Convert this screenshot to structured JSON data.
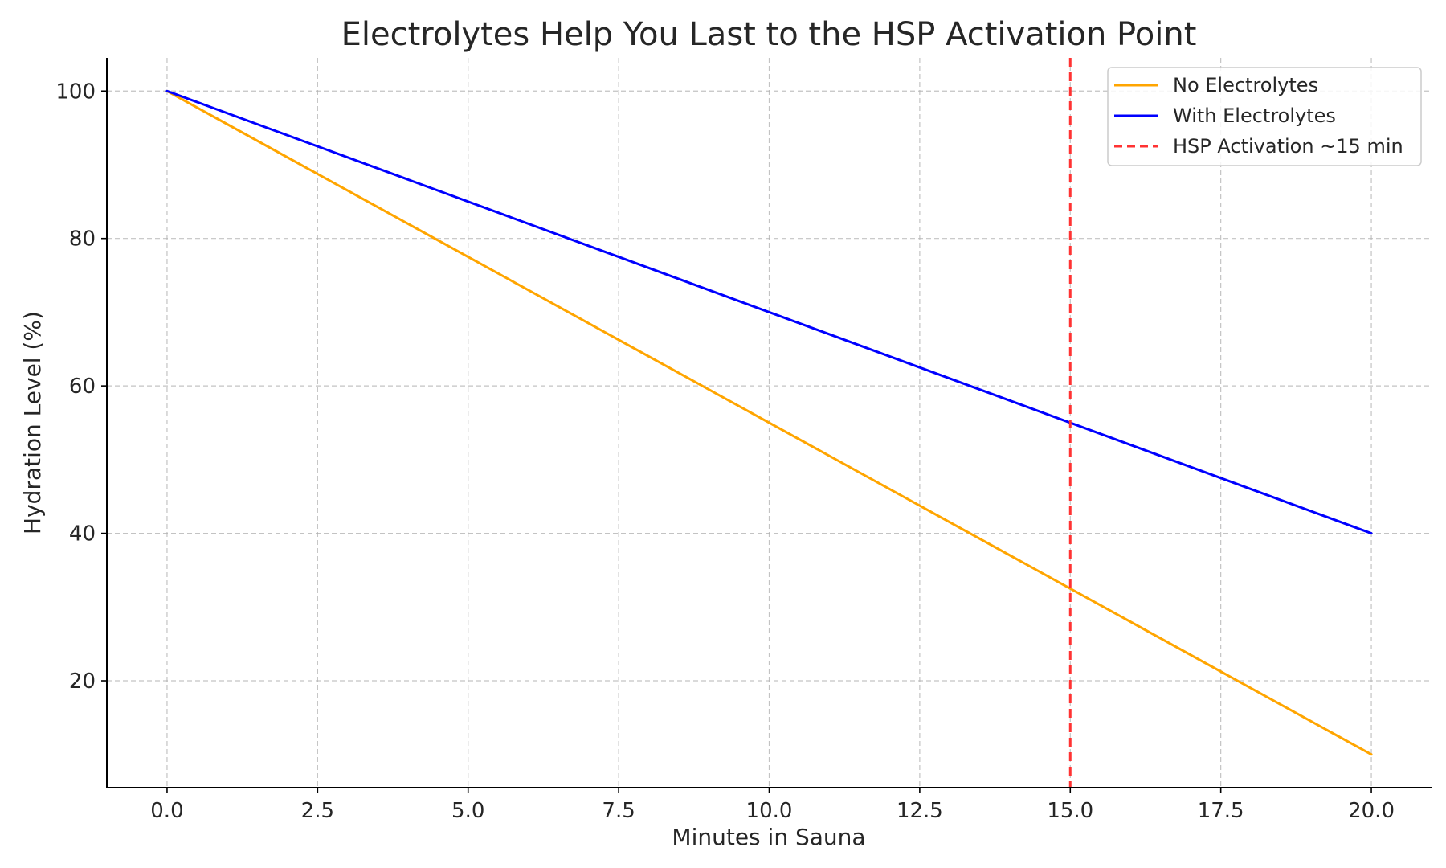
{
  "chart_data": {
    "type": "line",
    "title": "Electrolytes Help You Last to the HSP Activation Point",
    "xlabel": "Minutes in Sauna",
    "ylabel": "Hydration Level (%)",
    "xlim": [
      -1.0,
      21.0
    ],
    "ylim": [
      5.5,
      104.5
    ],
    "xticks": [
      0.0,
      2.5,
      5.0,
      7.5,
      10.0,
      12.5,
      15.0,
      17.5,
      20.0
    ],
    "xtick_labels": [
      "0.0",
      "2.5",
      "5.0",
      "7.5",
      "10.0",
      "12.5",
      "15.0",
      "17.5",
      "20.0"
    ],
    "yticks": [
      20,
      40,
      60,
      80,
      100
    ],
    "ytick_labels": [
      "20",
      "40",
      "60",
      "80",
      "100"
    ],
    "grid": true,
    "legend_position": "top-right",
    "series": [
      {
        "name": "No Electrolytes",
        "color": "#FFA500",
        "style": "solid",
        "x": [
          0,
          20
        ],
        "y": [
          100,
          10
        ]
      },
      {
        "name": "With Electrolytes",
        "color": "#0000FF",
        "style": "solid",
        "x": [
          0,
          20
        ],
        "y": [
          100,
          40
        ]
      }
    ],
    "vlines": [
      {
        "name": "HSP Activation ~15 min",
        "x": 15,
        "color": "#FF3333",
        "style": "dashed"
      }
    ]
  }
}
